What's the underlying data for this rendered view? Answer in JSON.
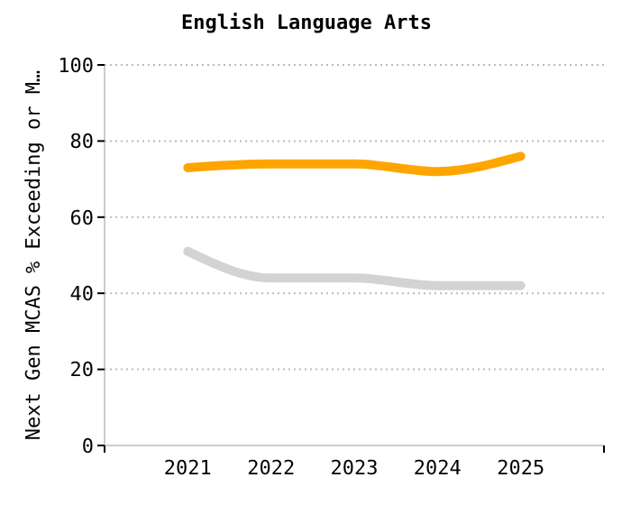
{
  "chart_data": {
    "type": "line",
    "title": "English Language Arts",
    "ylabel": "Next Gen MCAS % Exceeding or M…",
    "categories": [
      "2021",
      "2022",
      "2023",
      "2024",
      "2025"
    ],
    "series": [
      {
        "color": "#ffa500",
        "values": [
          73,
          74,
          74,
          72,
          76
        ]
      },
      {
        "color": "#d3d3d3",
        "values": [
          51,
          44,
          44,
          42,
          42
        ]
      }
    ],
    "ylim": [
      0,
      100
    ],
    "yticks": [
      0,
      20,
      40,
      60,
      80,
      100
    ],
    "grid": "y",
    "line_style": "solid",
    "marker": "none"
  }
}
